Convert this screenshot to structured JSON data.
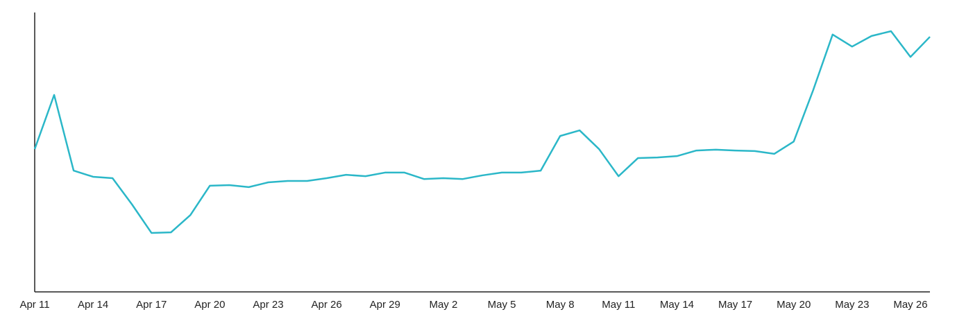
{
  "chart_data": {
    "type": "line",
    "categories": [
      "Apr 11",
      null,
      null,
      "Apr 14",
      null,
      null,
      "Apr 17",
      null,
      null,
      "Apr 20",
      null,
      null,
      "Apr 23",
      null,
      null,
      "Apr 26",
      null,
      null,
      "Apr 29",
      null,
      null,
      "May 2",
      null,
      null,
      "May 5",
      null,
      null,
      "May 8",
      null,
      null,
      "May 11",
      null,
      null,
      "May 14",
      null,
      null,
      "May 17",
      null,
      null,
      "May 20",
      null,
      null,
      "May 23",
      null,
      null,
      "May 26",
      null
    ],
    "values": [
      51.1,
      70.5,
      43.4,
      41.2,
      40.7,
      31.3,
      21.1,
      21.3,
      27.5,
      38.0,
      38.2,
      37.5,
      39.2,
      39.7,
      39.7,
      40.7,
      41.9,
      41.4,
      42.7,
      42.7,
      40.4,
      40.7,
      40.4,
      41.7,
      42.7,
      42.7,
      43.4,
      55.8,
      57.8,
      51.1,
      41.4,
      47.9,
      48.1,
      48.6,
      50.6,
      50.9,
      50.6,
      50.4,
      49.4,
      53.8,
      72.2,
      92.1,
      87.8,
      91.6,
      93.3,
      84.1,
      91.3
    ],
    "color": "#2bb7c8",
    "ylim": [
      0,
      100
    ]
  }
}
